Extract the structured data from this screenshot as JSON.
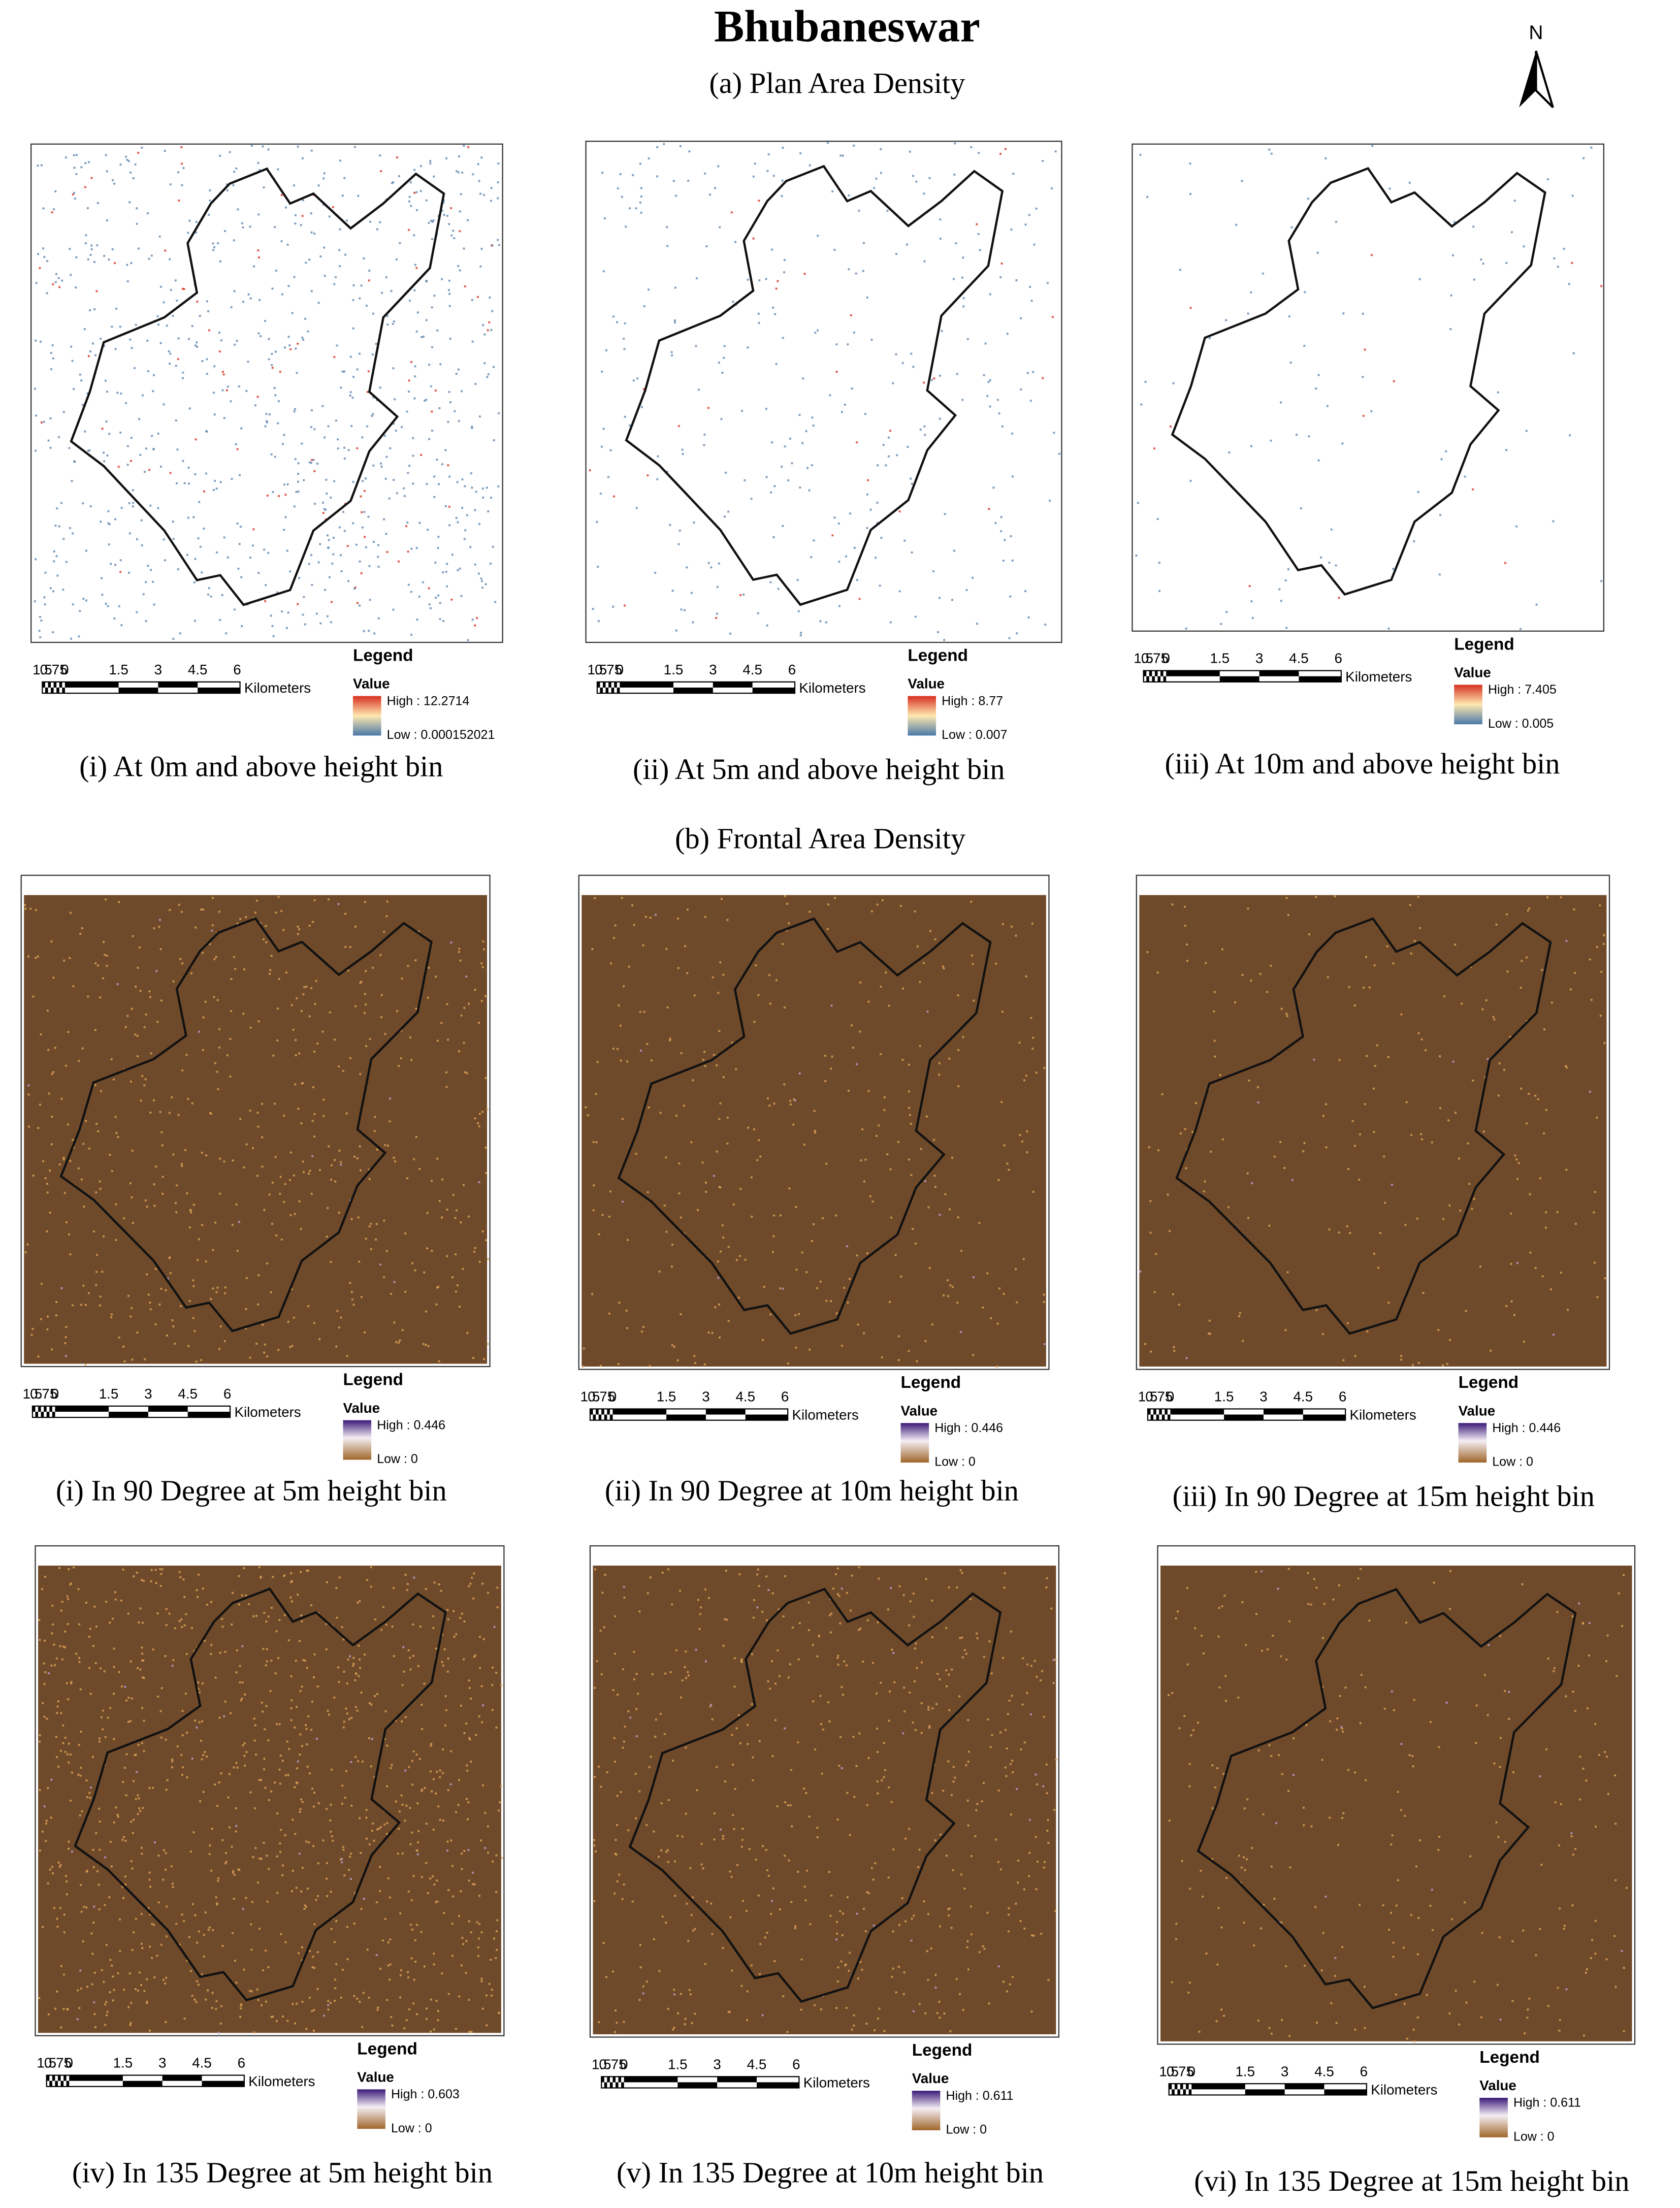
{
  "title": "Bhubaneswar",
  "north": "N",
  "scale_bar": {
    "labels": [
      "1.5",
      "0.75",
      "0",
      "1.5",
      "3",
      "4.5",
      "6"
    ],
    "unit": "Kilometers"
  },
  "legend_title": "Legend",
  "legend_value": "Value",
  "sections": [
    {
      "label": "(a) Plan Area Density",
      "panels": [
        {
          "caption": "(i) At 0m and above height bin",
          "high": "High : 12.2714",
          "low": "Low : 0.000152021"
        },
        {
          "caption": "(ii) At 5m and above height bin",
          "high": "High : 8.77",
          "low": "Low : 0.007"
        },
        {
          "caption": "(iii) At 10m and above height bin",
          "high": "High : 7.405",
          "low": "Low : 0.005"
        }
      ]
    },
    {
      "label": "(b) Frontal Area Density",
      "panels": [
        {
          "caption": "(i) In 90 Degree at 5m height bin",
          "high": "High : 0.446",
          "low": "Low : 0"
        },
        {
          "caption": "(ii) In 90 Degree at 10m height bin",
          "high": "High : 0.446",
          "low": "Low : 0"
        },
        {
          "caption": "(iii) In 90 Degree at 15m height bin",
          "high": "High : 0.446",
          "low": "Low : 0"
        },
        {
          "caption": "(iv) In 135 Degree at 5m height bin",
          "high": "High : 0.603",
          "low": "Low : 0"
        },
        {
          "caption": "(v) In 135 Degree at 10m height bin",
          "high": "High : 0.611",
          "low": "Low : 0"
        },
        {
          "caption": "(vi) In 135 Degree at 15m height bin",
          "high": "High : 0.611",
          "low": "Low : 0"
        }
      ]
    }
  ]
}
